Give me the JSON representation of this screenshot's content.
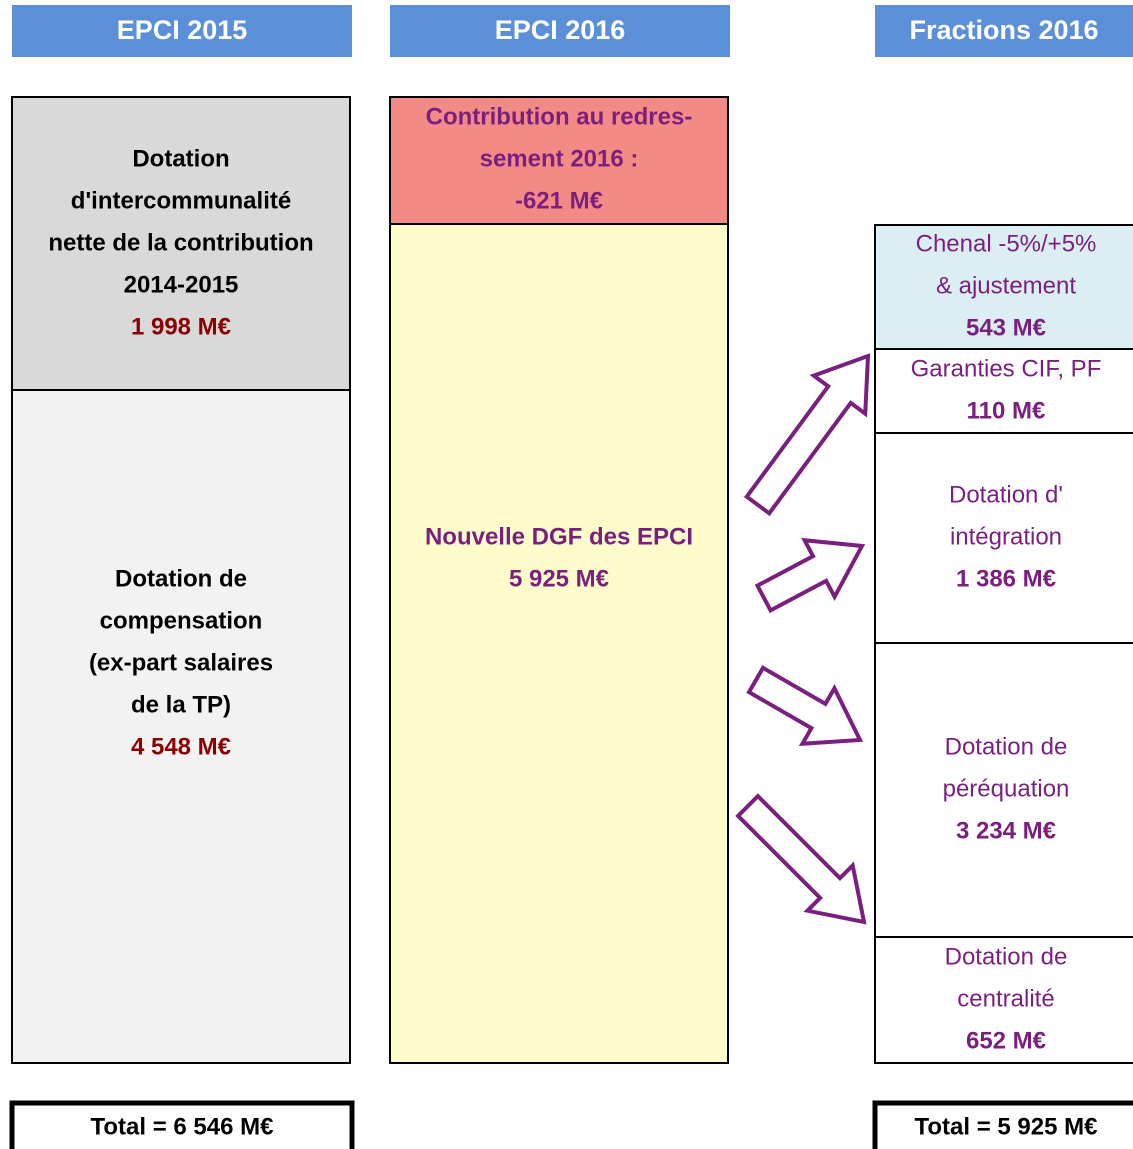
{
  "headers": [
    "EPCI 2015",
    "EPCI 2016",
    "Fractions 2016"
  ],
  "epci_2015": {
    "boxes": [
      {
        "lines": [
          "Dotation",
          "d'intercommunalité",
          "nette de la contribution",
          "2014-2015"
        ],
        "amount": "1 998 M€"
      },
      {
        "lines": [
          "Dotation de",
          "compensation",
          "(ex-part salaires",
          "de la TP)"
        ],
        "amount": "4 548 M€"
      }
    ],
    "total": "Total = 6 546 M€"
  },
  "epci_2016": {
    "boxes": [
      {
        "lines": [
          "Contribution au redres-",
          "sement 2016 :"
        ],
        "amount": "-621 M€"
      },
      {
        "lines": [
          "Nouvelle DGF des EPCI"
        ],
        "amount": "5 925 M€"
      }
    ]
  },
  "fractions_2016": {
    "boxes": [
      {
        "lines": [
          "Chenal -5%/+5%",
          "& ajustement"
        ],
        "amount": "543 M€"
      },
      {
        "lines": [
          "Garanties CIF, PF"
        ],
        "amount": "110 M€"
      },
      {
        "lines": [
          "Dotation d'",
          "intégration"
        ],
        "amount": "1 386 M€"
      },
      {
        "lines": [
          "Dotation de",
          "péréquation"
        ],
        "amount": "3 234 M€"
      },
      {
        "lines": [
          "Dotation de",
          "centralité"
        ],
        "amount": "652 M€"
      }
    ],
    "total": "Total = 5 925 M€"
  }
}
